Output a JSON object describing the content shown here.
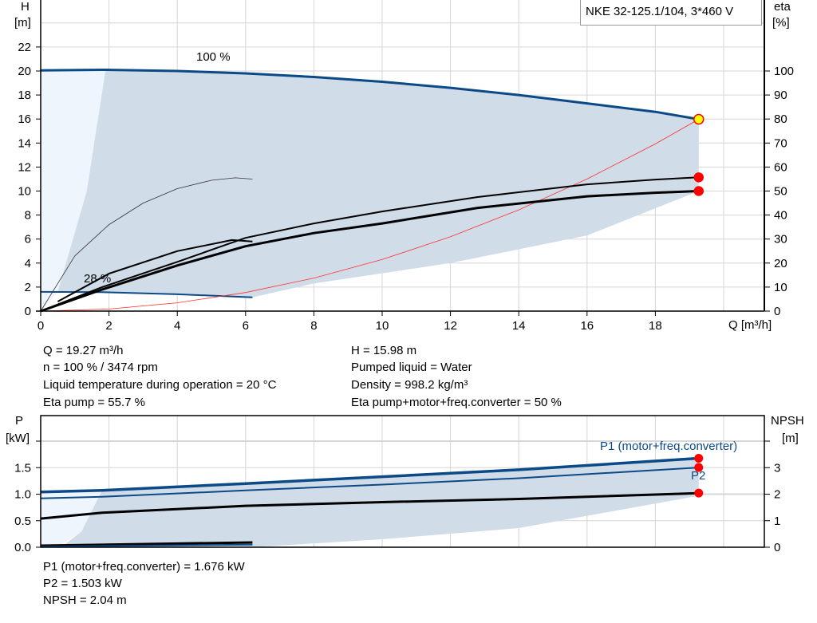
{
  "title": "NKE 32-125.1/104, 3*460 V",
  "info_top": {
    "left": [
      "Q = 19.27 m³/h",
      "n = 100 % / 3474 rpm",
      "Liquid temperature during operation = 20 °C",
      "Eta pump = 55.7 %"
    ],
    "right": [
      "H = 15.98 m",
      "Pumped liquid = Water",
      "Density = 998.2 kg/m³",
      "Eta pump+motor+freq.converter = 50 %"
    ]
  },
  "info_bottom": [
    "P1 (motor+freq.converter) = 1.676 kW",
    "P2 = 1.503 kW",
    "NPSH = 2.04 m"
  ],
  "colors": {
    "curve_blue": "#0b4a87",
    "shade": "#d0dce8",
    "shade_light": "#eef5fd",
    "grid": "#d6d6d6",
    "duty_point": "#ff0000",
    "operating_point_fill": "#ffff00"
  },
  "chart_data": [
    {
      "type": "line",
      "ylabel_left": "H",
      "yunit_left": "[m]",
      "ylabel_right": "eta",
      "yunit_right": "[%]",
      "xlabel": "Q [m³/h]",
      "xlim": [
        0,
        21
      ],
      "ylim_left": [
        0,
        24
      ],
      "ylim_right": [
        0,
        110
      ],
      "grid": true,
      "x_ticks": [
        "0",
        "2",
        "4",
        "6",
        "8",
        "10",
        "12",
        "14",
        "16",
        "18"
      ],
      "y_left_ticks": [
        "0",
        "2",
        "4",
        "6",
        "8",
        "10",
        "12",
        "14",
        "16",
        "18",
        "20",
        "22"
      ],
      "y_right_ticks": [
        "0",
        "10",
        "20",
        "30",
        "40",
        "50",
        "60",
        "70",
        "80",
        "90",
        "100"
      ],
      "annotations": [
        "100 %",
        "28 %"
      ],
      "series": [
        {
          "key": "H_100",
          "axis": "H",
          "x": [
            0,
            1.9,
            4,
            6,
            8,
            10,
            12,
            14,
            16,
            18,
            19.27
          ],
          "y": [
            20.05,
            20.1,
            20.0,
            19.8,
            19.5,
            19.1,
            18.6,
            18.0,
            17.3,
            16.6,
            15.98
          ]
        },
        {
          "key": "H_28",
          "axis": "H",
          "x": [
            0,
            1.8,
            4,
            6.2
          ],
          "y": [
            1.6,
            1.58,
            1.4,
            1.15
          ]
        },
        {
          "key": "system_curve",
          "axis": "H",
          "x": [
            0,
            2,
            4,
            6,
            8,
            10,
            12,
            14,
            16,
            18,
            19.27
          ],
          "y": [
            0,
            0.17,
            0.69,
            1.55,
            2.75,
            4.3,
            6.19,
            8.43,
            11.0,
            13.93,
            15.98
          ]
        },
        {
          "key": "eta_pump_100",
          "axis": "eta",
          "x": [
            0,
            1.8,
            4,
            6,
            8,
            10,
            12.8,
            16,
            18,
            19.27
          ],
          "y": [
            0,
            10,
            20.5,
            30.5,
            36.5,
            41.5,
            47.5,
            52.8,
            54.8,
            55.7
          ]
        },
        {
          "key": "eta_total_100",
          "axis": "eta",
          "x": [
            0,
            1.8,
            4,
            6,
            8,
            10,
            12.8,
            16,
            18,
            19.27
          ],
          "y": [
            0,
            9,
            19,
            27,
            32.5,
            36.5,
            43,
            47.8,
            49.3,
            50
          ]
        },
        {
          "key": "eta_28",
          "axis": "eta",
          "x": [
            0.5,
            2,
            4,
            5.6,
            6.2
          ],
          "y": [
            4,
            15.6,
            25,
            29.6,
            29
          ]
        },
        {
          "key": "eta_thin",
          "axis": "eta",
          "x": [
            0,
            1,
            2,
            3,
            4,
            5,
            5.7,
            6.2
          ],
          "y": [
            0,
            23,
            36,
            45,
            51,
            54.5,
            55.5,
            55
          ]
        }
      ],
      "points": [
        {
          "key": "operating_point",
          "x": 19.27,
          "y": 15.98,
          "axis": "H"
        },
        {
          "key": "eta_pump",
          "x": 19.27,
          "y": 55.7,
          "axis": "eta"
        },
        {
          "key": "eta_total",
          "x": 19.27,
          "y": 50,
          "axis": "eta"
        }
      ]
    },
    {
      "type": "line",
      "ylabel_left": "P",
      "yunit_left": "[kW]",
      "ylabel_right": "NPSH",
      "yunit_right": "[m]",
      "xlim": [
        0,
        21
      ],
      "ylim_left": [
        0,
        2.0
      ],
      "ylim_right": [
        0,
        4
      ],
      "grid": true,
      "y_left_ticks": [
        "0.0",
        "0.5",
        "1.0",
        "1.5"
      ],
      "y_right_ticks": [
        "0",
        "1",
        "2",
        "3"
      ],
      "labels": {
        "p1": "P1 (motor+freq.converter)",
        "p2": "P2"
      },
      "series": [
        {
          "key": "P1_100",
          "axis": "P",
          "x": [
            0,
            1.8,
            6,
            10,
            14,
            19.27
          ],
          "y": [
            1.04,
            1.07,
            1.2,
            1.33,
            1.46,
            1.676
          ]
        },
        {
          "key": "P2_100",
          "axis": "P",
          "x": [
            0,
            1.8,
            6,
            10,
            14,
            19.27
          ],
          "y": [
            0.92,
            0.95,
            1.07,
            1.18,
            1.3,
            1.503
          ]
        },
        {
          "key": "NPSH_100",
          "axis": "NPSH",
          "x": [
            0,
            1.8,
            6,
            10,
            14,
            19.27
          ],
          "y": [
            1.08,
            1.3,
            1.56,
            1.7,
            1.82,
            2.04
          ]
        },
        {
          "key": "P1_28",
          "axis": "P",
          "x": [
            0,
            6.2
          ],
          "y": [
            0.03,
            0.09
          ]
        },
        {
          "key": "P2_28",
          "axis": "P",
          "x": [
            0,
            6.2
          ],
          "y": [
            0.01,
            0.05
          ]
        }
      ],
      "points": [
        {
          "key": "P1",
          "x": 19.27,
          "y": 1.676,
          "axis": "P"
        },
        {
          "key": "P2",
          "x": 19.27,
          "y": 1.503,
          "axis": "P"
        },
        {
          "key": "NPSH",
          "x": 19.27,
          "y": 2.04,
          "axis": "NPSH"
        }
      ]
    }
  ]
}
